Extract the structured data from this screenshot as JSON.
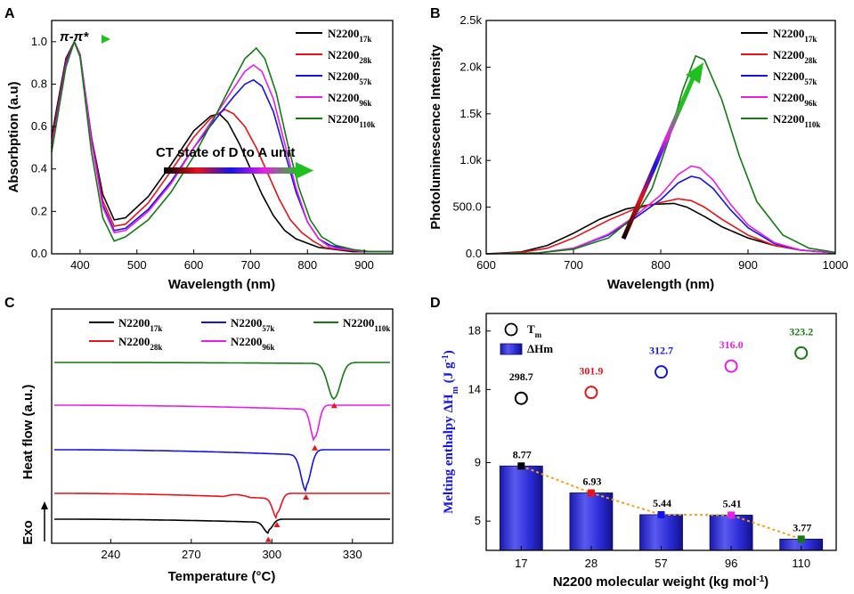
{
  "series_names": [
    {
      "base": "N2200",
      "sub": "17k",
      "color": "#000000"
    },
    {
      "base": "N2200",
      "sub": "28k",
      "color": "#e8131b"
    },
    {
      "base": "N2200",
      "sub": "57k",
      "color": "#1414e6"
    },
    {
      "base": "N2200",
      "sub": "96k",
      "color": "#e81ee8"
    },
    {
      "base": "N2200",
      "sub": "110k",
      "color": "#137a13"
    }
  ],
  "chart_data": [
    {
      "panel": "A",
      "type": "line",
      "xlabel": "Wavelength (nm)",
      "ylabel": "Absorbption (a.u)",
      "xlim": [
        350,
        950
      ],
      "ylim": [
        0.0,
        1.1
      ],
      "xticks": [
        400,
        500,
        600,
        700,
        800,
        900
      ],
      "yticks": [
        0.0,
        0.2,
        0.4,
        0.6,
        0.8,
        1.0
      ],
      "ytick_labels": [
        "0.0",
        "0.2",
        "0.4",
        "0.6",
        "0.8",
        "1.0"
      ],
      "annotations": [
        "π-π*",
        "CT state of D to A unit"
      ],
      "series": [
        {
          "name": "N2200 17k",
          "x": [
            350,
            360,
            375,
            390,
            400,
            420,
            440,
            460,
            480,
            520,
            560,
            600,
            630,
            645,
            660,
            680,
            700,
            720,
            740,
            760,
            780,
            800,
            820,
            850,
            880,
            920,
            950
          ],
          "y": [
            0.55,
            0.7,
            0.92,
            1.0,
            0.93,
            0.55,
            0.28,
            0.16,
            0.17,
            0.27,
            0.42,
            0.58,
            0.65,
            0.66,
            0.62,
            0.52,
            0.4,
            0.28,
            0.18,
            0.11,
            0.07,
            0.05,
            0.03,
            0.02,
            0.01,
            0.01,
            0.01
          ]
        },
        {
          "name": "N2200 28k",
          "x": [
            350,
            360,
            375,
            390,
            400,
            420,
            440,
            460,
            480,
            520,
            560,
            600,
            630,
            655,
            670,
            690,
            710,
            730,
            750,
            770,
            790,
            810,
            830,
            860,
            900,
            950
          ],
          "y": [
            0.52,
            0.68,
            0.91,
            1.0,
            0.94,
            0.55,
            0.25,
            0.13,
            0.14,
            0.24,
            0.39,
            0.55,
            0.64,
            0.68,
            0.66,
            0.6,
            0.5,
            0.38,
            0.26,
            0.16,
            0.1,
            0.06,
            0.03,
            0.02,
            0.01,
            0.01
          ]
        },
        {
          "name": "N2200 57k",
          "x": [
            350,
            360,
            375,
            390,
            400,
            420,
            440,
            460,
            480,
            520,
            560,
            600,
            640,
            670,
            690,
            705,
            720,
            740,
            760,
            780,
            800,
            820,
            840,
            870,
            900,
            950
          ],
          "y": [
            0.5,
            0.66,
            0.9,
            1.0,
            0.94,
            0.54,
            0.23,
            0.11,
            0.12,
            0.21,
            0.34,
            0.5,
            0.64,
            0.74,
            0.8,
            0.82,
            0.79,
            0.67,
            0.48,
            0.29,
            0.15,
            0.07,
            0.04,
            0.02,
            0.01,
            0.01
          ]
        },
        {
          "name": "N2200 96k",
          "x": [
            350,
            360,
            375,
            390,
            400,
            420,
            440,
            460,
            480,
            520,
            560,
            600,
            640,
            670,
            690,
            705,
            720,
            740,
            760,
            780,
            800,
            820,
            840,
            870,
            900,
            950
          ],
          "y": [
            0.5,
            0.65,
            0.89,
            1.0,
            0.94,
            0.53,
            0.22,
            0.1,
            0.11,
            0.2,
            0.33,
            0.5,
            0.66,
            0.78,
            0.86,
            0.89,
            0.86,
            0.73,
            0.52,
            0.31,
            0.15,
            0.07,
            0.03,
            0.02,
            0.01,
            0.01
          ]
        },
        {
          "name": "N2200 110k",
          "x": [
            350,
            360,
            375,
            390,
            400,
            420,
            440,
            460,
            480,
            520,
            560,
            600,
            640,
            670,
            690,
            710,
            725,
            745,
            765,
            785,
            805,
            825,
            850,
            880,
            910,
            950
          ],
          "y": [
            0.48,
            0.64,
            0.88,
            1.0,
            0.93,
            0.48,
            0.17,
            0.06,
            0.08,
            0.16,
            0.29,
            0.46,
            0.66,
            0.82,
            0.92,
            0.97,
            0.92,
            0.76,
            0.52,
            0.31,
            0.16,
            0.08,
            0.04,
            0.02,
            0.01,
            0.01
          ]
        }
      ]
    },
    {
      "panel": "B",
      "type": "line",
      "xlabel": "Wavelength (nm)",
      "ylabel": "Photoluminescence Intensity",
      "xlim": [
        600,
        1000
      ],
      "ylim": [
        0,
        2500
      ],
      "xticks": [
        600,
        700,
        800,
        900,
        1000
      ],
      "yticks": [
        0,
        500,
        1000,
        1500,
        2000,
        2500
      ],
      "ytick_labels": [
        "0.0",
        "500.0",
        "1.0k",
        "1.5k",
        "2.0k",
        "2.5k"
      ],
      "series": [
        {
          "name": "N2200 17k",
          "x": [
            600,
            640,
            670,
            700,
            730,
            760,
            790,
            815,
            830,
            850,
            870,
            900,
            930,
            960,
            1000
          ],
          "y": [
            0,
            20,
            90,
            220,
            370,
            480,
            530,
            540,
            500,
            400,
            290,
            170,
            90,
            40,
            10
          ]
        },
        {
          "name": "N2200 28k",
          "x": [
            600,
            640,
            670,
            700,
            740,
            770,
            800,
            820,
            835,
            850,
            870,
            900,
            930,
            960,
            1000
          ],
          "y": [
            0,
            15,
            60,
            170,
            360,
            480,
            550,
            590,
            570,
            500,
            370,
            200,
            90,
            40,
            10
          ]
        },
        {
          "name": "N2200 57k",
          "x": [
            600,
            660,
            700,
            740,
            770,
            800,
            820,
            835,
            845,
            860,
            880,
            900,
            930,
            960,
            1000
          ],
          "y": [
            0,
            10,
            60,
            200,
            380,
            580,
            760,
            830,
            810,
            700,
            470,
            280,
            110,
            40,
            10
          ]
        },
        {
          "name": "N2200 96k",
          "x": [
            600,
            660,
            700,
            740,
            770,
            800,
            820,
            835,
            845,
            860,
            880,
            900,
            930,
            960,
            1000
          ],
          "y": [
            0,
            10,
            60,
            210,
            400,
            630,
            850,
            940,
            920,
            790,
            530,
            310,
            120,
            40,
            10
          ]
        },
        {
          "name": "N2200 110k",
          "x": [
            600,
            660,
            700,
            740,
            770,
            790,
            810,
            825,
            840,
            850,
            870,
            890,
            910,
            940,
            970,
            1000
          ],
          "y": [
            0,
            10,
            50,
            170,
            400,
            700,
            1250,
            1750,
            2120,
            2080,
            1650,
            1050,
            560,
            200,
            60,
            15
          ]
        }
      ]
    },
    {
      "panel": "C",
      "type": "line",
      "xlabel": "Temperature (°C)",
      "ylabel": "Heat flow (a.u.)",
      "y_annotation": "Exo",
      "xlim": [
        218,
        345
      ],
      "xticks": [
        240,
        270,
        300,
        330
      ],
      "peak_temperatures": [
        298.7,
        301.9,
        312.7,
        316.0,
        323.2
      ],
      "legend_order": [
        0,
        2,
        4,
        1,
        3
      ]
    },
    {
      "panel": "D",
      "type": "bar",
      "xlabel": "N2200 molecular weight (kg mol-1)",
      "ylabel": "Melting enthalpy ΔHm (J g-1)",
      "categories": [
        "17",
        "28",
        "57",
        "96",
        "110"
      ],
      "ylim": [
        3,
        19.2
      ],
      "yticks": [
        5,
        9,
        14,
        18
      ],
      "legend": [
        "Tm",
        "ΔHm"
      ],
      "bars": {
        "name": "ΔHm",
        "values": [
          8.77,
          6.93,
          5.44,
          5.41,
          3.77
        ],
        "labels": [
          "8.77",
          "6.93",
          "5.44",
          "5.41",
          "3.77"
        ]
      },
      "circles": {
        "name": "Tm",
        "values": [
          298.7,
          301.9,
          312.7,
          316.0,
          323.2
        ],
        "labels": [
          "298.7",
          "301.9",
          "312.7",
          "316.0",
          "323.2"
        ],
        "y_on_axis": [
          13.4,
          13.8,
          15.2,
          15.6,
          16.5
        ]
      }
    }
  ]
}
